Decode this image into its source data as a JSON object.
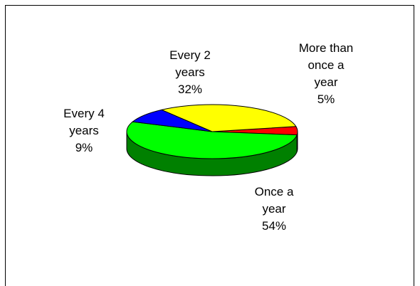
{
  "chart_data": {
    "type": "pie",
    "three_d": true,
    "legend": false,
    "slices": [
      {
        "label": "More than once a year",
        "value": 5,
        "label_lines": [
          "More than",
          "once a",
          "year",
          "5%"
        ],
        "color": "#ff0000",
        "side_color": "#990000"
      },
      {
        "label": "Once a year",
        "value": 54,
        "label_lines": [
          "Once a",
          "year",
          "54%"
        ],
        "color": "#00ff00",
        "side_color": "#008000"
      },
      {
        "label": "Every 4 years",
        "value": 9,
        "label_lines": [
          "Every 4",
          "years",
          "9%"
        ],
        "color": "#0000ff",
        "side_color": "#000080"
      },
      {
        "label": "Every 2 years",
        "value": 32,
        "label_lines": [
          "Every 2",
          "years",
          "32%"
        ],
        "color": "#ffff00",
        "side_color": "#999900"
      }
    ]
  }
}
